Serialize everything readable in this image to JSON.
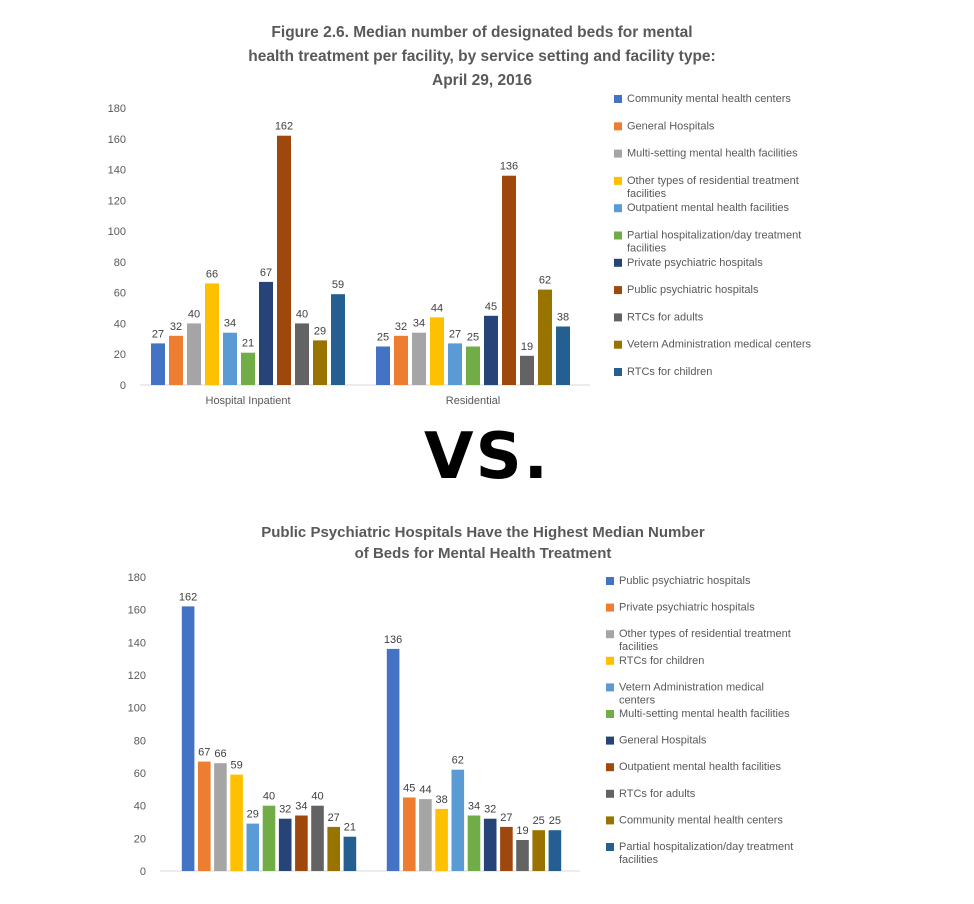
{
  "divider_text": "VS.",
  "chart_data": [
    {
      "type": "bar",
      "title_lines": [
        "Figure 2.6. Median number of designated beds for mental",
        "health treatment per facility, by service setting and facility type:",
        "April 29, 2016"
      ],
      "categories": [
        "Hospital Inpatient",
        "Residential"
      ],
      "ylim": [
        0,
        180
      ],
      "yticks": [
        0,
        20,
        40,
        60,
        80,
        100,
        120,
        140,
        160,
        180
      ],
      "gridlines": false,
      "legend_position": "right",
      "series": [
        {
          "name": "Community mental health centers",
          "color": "#4472C4",
          "values": [
            27,
            25
          ]
        },
        {
          "name": "General Hospitals",
          "color": "#ED7D31",
          "values": [
            32,
            32
          ]
        },
        {
          "name": "Multi-setting mental health facilities",
          "color": "#A5A5A5",
          "values": [
            40,
            34
          ]
        },
        {
          "name": "Other types of residential treatment facilities",
          "name_lines": [
            "Other types of residential treatment",
            "facilities"
          ],
          "color": "#FFC000",
          "values": [
            66,
            44
          ]
        },
        {
          "name": "Outpatient mental health facilities",
          "color": "#5B9BD5",
          "values": [
            34,
            27
          ]
        },
        {
          "name": "Partial hospitalization/day treatment facilities",
          "name_lines": [
            "Partial hospitalization/day treatment",
            "facilities"
          ],
          "color": "#70AD47",
          "values": [
            21,
            25
          ]
        },
        {
          "name": "Private psychiatric hospitals",
          "color": "#264478",
          "values": [
            67,
            45
          ]
        },
        {
          "name": "Public psychiatric hospitals",
          "color": "#9E480E",
          "values": [
            162,
            136
          ]
        },
        {
          "name": "RTCs for adults",
          "color": "#636363",
          "values": [
            40,
            19
          ]
        },
        {
          "name": "Vetern Administration medical centers",
          "color": "#997300",
          "values": [
            29,
            62
          ]
        },
        {
          "name": "RTCs for children",
          "color": "#255E91",
          "values": [
            59,
            38
          ]
        }
      ]
    },
    {
      "type": "bar",
      "title_lines": [
        "Public Psychiatric Hospitals Have the Highest Median Number",
        "of Beds for Mental Health Treatment"
      ],
      "categories": [
        "",
        ""
      ],
      "ylim": [
        0,
        180
      ],
      "yticks": [
        0,
        20,
        40,
        60,
        80,
        100,
        120,
        140,
        160,
        180
      ],
      "gridlines": false,
      "legend_position": "right",
      "series": [
        {
          "name": "Public psychiatric hospitals",
          "color": "#4472C4",
          "values": [
            162,
            136
          ]
        },
        {
          "name": "Private psychiatric hospitals",
          "color": "#ED7D31",
          "values": [
            67,
            45
          ]
        },
        {
          "name": "Other types of residential treatment facilities",
          "name_lines": [
            "Other types of residential treatment",
            "facilities"
          ],
          "color": "#A5A5A5",
          "values": [
            66,
            44
          ]
        },
        {
          "name": "RTCs for children",
          "color": "#FFC000",
          "values": [
            59,
            38
          ]
        },
        {
          "name": "Vetern Administration medical centers",
          "name_lines": [
            "Vetern Administration medical",
            "centers"
          ],
          "color": "#5B9BD5",
          "values": [
            29,
            62
          ]
        },
        {
          "name": "Multi-setting mental health facilities",
          "color": "#70AD47",
          "values": [
            40,
            34
          ]
        },
        {
          "name": "General Hospitals",
          "color": "#264478",
          "values": [
            32,
            32
          ]
        },
        {
          "name": "Outpatient mental health facilities",
          "color": "#9E480E",
          "values": [
            34,
            27
          ]
        },
        {
          "name": "RTCs for adults",
          "color": "#636363",
          "values": [
            40,
            19
          ]
        },
        {
          "name": "Community mental health centers",
          "color": "#997300",
          "values": [
            27,
            25
          ]
        },
        {
          "name": "Partial hospitalization/day treatment facilities",
          "name_lines": [
            "Partial hospitalization/day treatment",
            "facilities"
          ],
          "color": "#255E91",
          "values": [
            21,
            25
          ]
        }
      ]
    }
  ]
}
